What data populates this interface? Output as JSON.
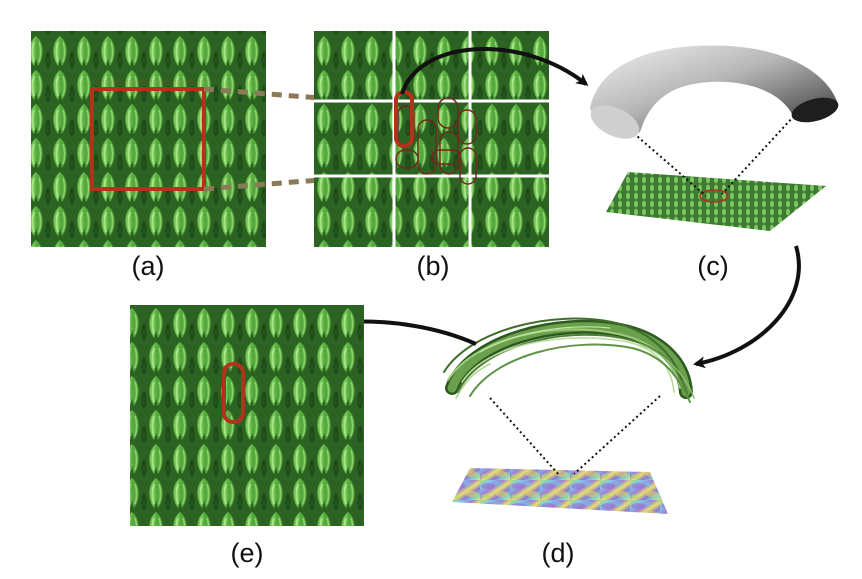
{
  "panels": {
    "a": {
      "label": "(a)"
    },
    "b": {
      "label": "(b)"
    },
    "c": {
      "label": "(c)"
    },
    "d": {
      "label": "(d)"
    },
    "e": {
      "label": "(e)"
    }
  },
  "colors": {
    "fabric_green": "#5fb04a",
    "fabric_dark": "#1d4a17",
    "fabric_light": "#9ee07e",
    "highlight_red": "#b2321c",
    "dashed_connector": "#8a7a55",
    "arrow": "#111111",
    "grid_line": "#ffffff",
    "tube_gray": "#9a9a9a"
  },
  "icons": {
    "arrow_b_to_c": "curved-arrow",
    "arrow_c_to_d": "curved-arrow",
    "arrow_d_to_e": "curved-arrow"
  }
}
